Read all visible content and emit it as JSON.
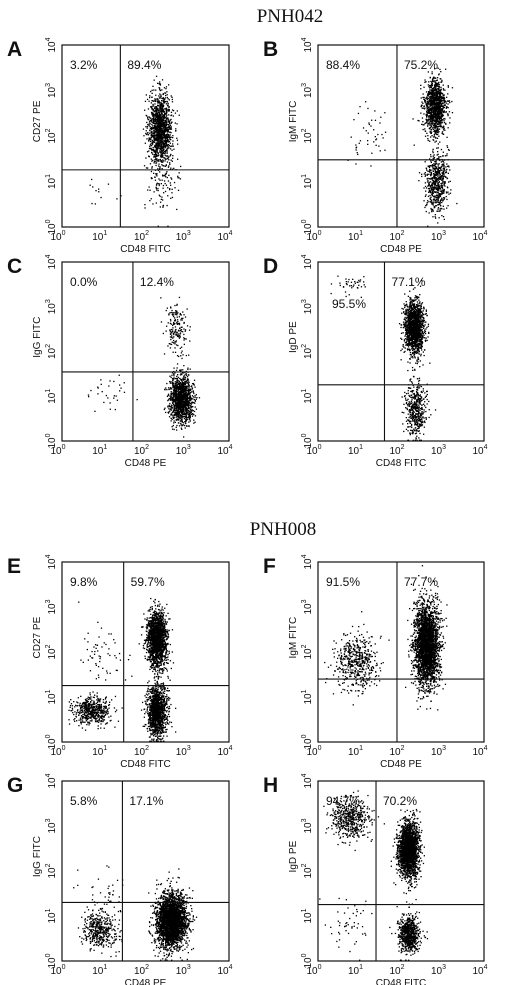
{
  "groups": [
    {
      "title": "PNH042"
    },
    {
      "title": "PNH008"
    }
  ],
  "axis_scale": "log",
  "axis_range": [
    1,
    10000
  ],
  "tick_labels": [
    {
      "base": "10",
      "exp": "0"
    },
    {
      "base": "10",
      "exp": "1"
    },
    {
      "base": "10",
      "exp": "2"
    },
    {
      "base": "10",
      "exp": "3"
    },
    {
      "base": "10",
      "exp": "4"
    }
  ],
  "chart_data": [
    {
      "type": "scatter",
      "group": "PNH042",
      "panel": "A",
      "xlabel": "CD48 FITC",
      "ylabel": "CD27 PE",
      "xscale": "log",
      "yscale": "log",
      "xlim": [
        1,
        10000
      ],
      "ylim": [
        1,
        10000
      ],
      "gate": {
        "x": 25,
        "y": 18
      },
      "quadrant_labels": [
        {
          "text": "3.2%",
          "quadrant": "upper-left"
        },
        {
          "text": "89.4%",
          "quadrant": "upper-right"
        }
      ],
      "populations": [
        {
          "x": 220,
          "y": 150,
          "sx": 0.14,
          "sy": 0.38,
          "n": 1300
        },
        {
          "x": 250,
          "y": 10,
          "sx": 0.22,
          "sy": 0.35,
          "n": 120
        },
        {
          "x": 8,
          "y": 6,
          "sx": 0.2,
          "sy": 0.2,
          "n": 12
        }
      ]
    },
    {
      "type": "scatter",
      "group": "PNH042",
      "panel": "B",
      "xlabel": "CD48 PE",
      "ylabel": "IgM FITC",
      "xscale": "log",
      "yscale": "log",
      "xlim": [
        1,
        10000
      ],
      "ylim": [
        1,
        10000
      ],
      "gate": {
        "x": 80,
        "y": 30
      },
      "quadrant_labels": [
        {
          "text": "88.4%",
          "quadrant": "upper-left"
        },
        {
          "text": "75.2%",
          "quadrant": "upper-right"
        }
      ],
      "populations": [
        {
          "x": 650,
          "y": 450,
          "sx": 0.13,
          "sy": 0.3,
          "n": 1100
        },
        {
          "x": 700,
          "y": 10,
          "sx": 0.13,
          "sy": 0.35,
          "n": 600
        },
        {
          "x": 15,
          "y": 120,
          "sx": 0.25,
          "sy": 0.3,
          "n": 45
        }
      ]
    },
    {
      "type": "scatter",
      "group": "PNH042",
      "panel": "C",
      "xlabel": "CD48 PE",
      "ylabel": "IgG FITC",
      "xscale": "log",
      "yscale": "log",
      "xlim": [
        1,
        10000
      ],
      "ylim": [
        1,
        10000
      ],
      "gate": {
        "x": 50,
        "y": 35
      },
      "quadrant_labels": [
        {
          "text": "0.0%",
          "quadrant": "upper-left"
        },
        {
          "text": "12.4%",
          "quadrant": "upper-right"
        }
      ],
      "populations": [
        {
          "x": 700,
          "y": 9,
          "sx": 0.14,
          "sy": 0.25,
          "n": 1300
        },
        {
          "x": 550,
          "y": 300,
          "sx": 0.13,
          "sy": 0.3,
          "n": 170
        },
        {
          "x": 12,
          "y": 12,
          "sx": 0.25,
          "sy": 0.2,
          "n": 30
        }
      ]
    },
    {
      "type": "scatter",
      "group": "PNH042",
      "panel": "D",
      "xlabel": "CD48 FITC",
      "ylabel": "IgD PE",
      "xscale": "log",
      "yscale": "log",
      "xlim": [
        1,
        10000
      ],
      "ylim": [
        1,
        10000
      ],
      "gate": {
        "x": 40,
        "y": 18
      },
      "quadrant_labels": [
        {
          "text": "95.5%",
          "quadrant": "upper-left-inner"
        },
        {
          "text": "77.1%",
          "quadrant": "upper-right"
        }
      ],
      "populations": [
        {
          "x": 200,
          "y": 350,
          "sx": 0.12,
          "sy": 0.3,
          "n": 1400
        },
        {
          "x": 220,
          "y": 5,
          "sx": 0.13,
          "sy": 0.3,
          "n": 450
        },
        {
          "x": 6,
          "y": 3000,
          "sx": 0.2,
          "sy": 0.1,
          "n": 40
        }
      ]
    },
    {
      "type": "scatter",
      "group": "PNH008",
      "panel": "E",
      "xlabel": "CD48 FITC",
      "ylabel": "CD27 PE",
      "xscale": "log",
      "yscale": "log",
      "xlim": [
        1,
        10000
      ],
      "ylim": [
        1,
        10000
      ],
      "gate": {
        "x": 30,
        "y": 18
      },
      "quadrant_labels": [
        {
          "text": "9.8%",
          "quadrant": "upper-left"
        },
        {
          "text": "59.7%",
          "quadrant": "upper-right"
        }
      ],
      "populations": [
        {
          "x": 180,
          "y": 200,
          "sx": 0.12,
          "sy": 0.3,
          "n": 1700
        },
        {
          "x": 180,
          "y": 5,
          "sx": 0.12,
          "sy": 0.3,
          "n": 1200
        },
        {
          "x": 5,
          "y": 5,
          "sx": 0.22,
          "sy": 0.15,
          "n": 500
        },
        {
          "x": 8,
          "y": 80,
          "sx": 0.25,
          "sy": 0.35,
          "n": 60
        }
      ]
    },
    {
      "type": "scatter",
      "group": "PNH008",
      "panel": "F",
      "xlabel": "CD48 PE",
      "ylabel": "IgM FITC",
      "xscale": "log",
      "yscale": "log",
      "xlim": [
        1,
        10000
      ],
      "ylim": [
        1,
        10000
      ],
      "gate": {
        "x": 80,
        "y": 25
      },
      "quadrant_labels": [
        {
          "text": "91.5%",
          "quadrant": "upper-left"
        },
        {
          "text": "77.7%",
          "quadrant": "upper-right"
        }
      ],
      "populations": [
        {
          "x": 400,
          "y": 150,
          "sx": 0.15,
          "sy": 0.45,
          "n": 2700
        },
        {
          "x": 8,
          "y": 60,
          "sx": 0.25,
          "sy": 0.3,
          "n": 500
        }
      ]
    },
    {
      "type": "scatter",
      "group": "PNH008",
      "panel": "G",
      "xlabel": "CD48 PE",
      "ylabel": "IgG FITC",
      "xscale": "log",
      "yscale": "log",
      "xlim": [
        1,
        10000
      ],
      "ylim": [
        1,
        10000
      ],
      "gate": {
        "x": 28,
        "y": 20
      },
      "quadrant_labels": [
        {
          "text": "5.8%",
          "quadrant": "upper-left"
        },
        {
          "text": "17.1%",
          "quadrant": "upper-right"
        }
      ],
      "populations": [
        {
          "x": 400,
          "y": 8,
          "sx": 0.18,
          "sy": 0.3,
          "n": 2800
        },
        {
          "x": 8,
          "y": 5,
          "sx": 0.2,
          "sy": 0.2,
          "n": 400
        },
        {
          "x": 10,
          "y": 30,
          "sx": 0.3,
          "sy": 0.3,
          "n": 40
        }
      ]
    },
    {
      "type": "scatter",
      "group": "PNH008",
      "panel": "H",
      "xlabel": "CD48 FITC",
      "ylabel": "IgD PE",
      "xscale": "log",
      "yscale": "log",
      "xlim": [
        1,
        10000
      ],
      "ylim": [
        1,
        10000
      ],
      "gate": {
        "x": 25,
        "y": 18
      },
      "quadrant_labels": [
        {
          "text": "94.7%",
          "quadrant": "upper-left"
        },
        {
          "text": "70.2%",
          "quadrant": "upper-right"
        }
      ],
      "populations": [
        {
          "x": 150,
          "y": 300,
          "sx": 0.12,
          "sy": 0.3,
          "n": 2200
        },
        {
          "x": 150,
          "y": 4,
          "sx": 0.12,
          "sy": 0.2,
          "n": 700
        },
        {
          "x": 6,
          "y": 1500,
          "sx": 0.22,
          "sy": 0.22,
          "n": 500
        },
        {
          "x": 6,
          "y": 7,
          "sx": 0.3,
          "sy": 0.3,
          "n": 50
        }
      ]
    }
  ]
}
